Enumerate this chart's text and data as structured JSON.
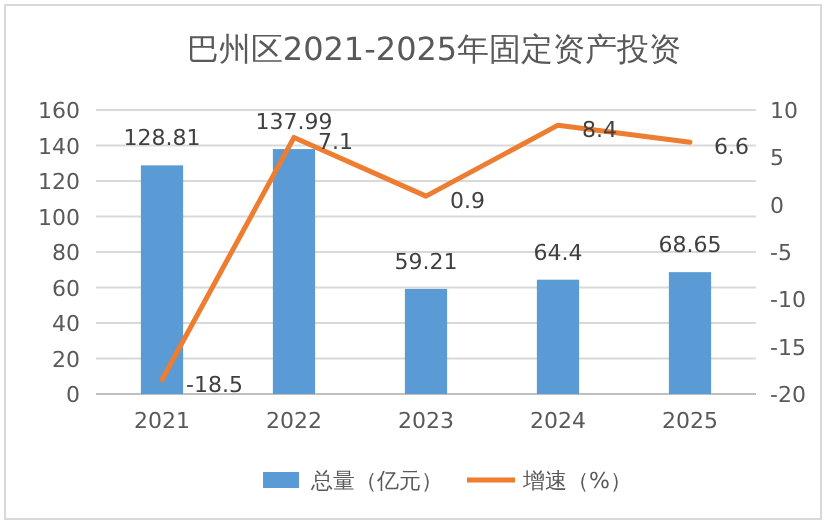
{
  "chart_data": {
    "type": "bar",
    "title": "巴州区2021-2025年固定资产投资",
    "categories": [
      "2021",
      "2022",
      "2023",
      "2024",
      "2025"
    ],
    "series": [
      {
        "name": "总量（亿元）",
        "color": "#5b9bd5",
        "values": [
          128.81,
          137.99,
          59.21,
          64.4,
          68.65
        ]
      },
      {
        "name": "增速（%）",
        "type": "line",
        "axis": "y2",
        "color": "#ed7d31",
        "values": [
          -18.5,
          7.1,
          0.9,
          8.4,
          6.6
        ]
      }
    ],
    "ylim": [
      0,
      160
    ],
    "yticks": [
      0,
      20,
      40,
      60,
      80,
      100,
      120,
      140,
      160
    ],
    "y2lim": [
      -20,
      10
    ],
    "y2ticks": [
      -20,
      -15,
      -10,
      -5,
      0,
      5,
      10
    ],
    "grid": "y",
    "legend": "bottom",
    "data_labels": true,
    "marker": "none",
    "line_style": "solid"
  }
}
